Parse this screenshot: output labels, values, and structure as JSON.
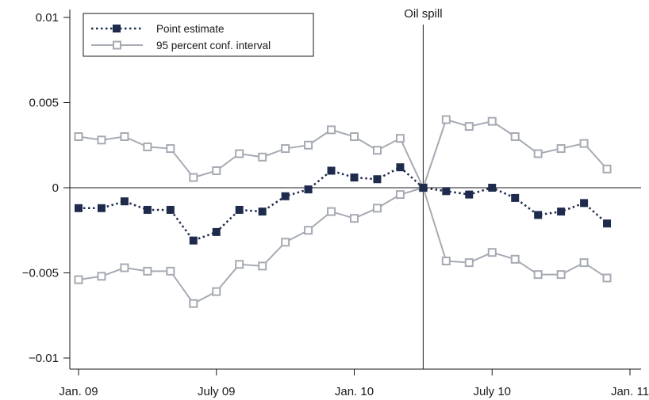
{
  "chart_data": {
    "type": "line",
    "xlim": [
      "Jan. 09",
      "Jan. 11"
    ],
    "ylim": [
      -0.01,
      0.01
    ],
    "x_ticks": [
      {
        "date": "2009-01",
        "label": "Jan. 09"
      },
      {
        "date": "2009-07",
        "label": "July 09"
      },
      {
        "date": "2010-01",
        "label": "Jan. 10"
      },
      {
        "date": "2010-07",
        "label": "July 10"
      },
      {
        "date": "2011-01",
        "label": "Jan. 11"
      }
    ],
    "y_ticks": [
      {
        "value": 0.01,
        "label": "0.01"
      },
      {
        "value": 0.005,
        "label": "0.005"
      },
      {
        "value": 0,
        "label": "0"
      },
      {
        "value": -0.005,
        "label": "−0.005"
      },
      {
        "value": -0.01,
        "label": "−0.01"
      }
    ],
    "x": [
      "2009-01",
      "2009-02",
      "2009-03",
      "2009-04",
      "2009-05",
      "2009-06",
      "2009-07",
      "2009-08",
      "2009-09",
      "2009-10",
      "2009-11",
      "2009-12",
      "2010-01",
      "2010-02",
      "2010-03",
      "2010-04",
      "2010-05",
      "2010-06",
      "2010-07",
      "2010-08",
      "2010-09",
      "2010-10",
      "2010-11",
      "2010-12"
    ],
    "series": [
      {
        "name": "Point estimate",
        "color": "#1f2b4d",
        "style": "dotted",
        "marker": "filled-square",
        "values": [
          -0.0012,
          -0.0012,
          -0.0008,
          -0.0013,
          -0.0013,
          -0.0031,
          -0.0026,
          -0.0013,
          -0.0014,
          -0.0005,
          -0.0001,
          0.001,
          0.0006,
          0.0005,
          0.0012,
          0.0,
          -0.0002,
          -0.0004,
          0.0,
          -0.0006,
          -0.0016,
          -0.0014,
          -0.0009,
          -0.0021
        ]
      },
      {
        "name": "95 percent conf. interval",
        "color": "#a6aab3",
        "style": "solid",
        "marker": "hollow-square",
        "values": [
          0.003,
          0.0028,
          0.003,
          0.0024,
          0.0023,
          0.0006,
          0.001,
          0.002,
          0.0018,
          0.0023,
          0.0025,
          0.0034,
          0.003,
          0.0022,
          0.0029,
          0.0,
          0.004,
          0.0036,
          0.0039,
          0.003,
          0.002,
          0.0023,
          0.0026,
          0.0011
        ]
      },
      {
        "color": "#a6aab3",
        "style": "solid",
        "marker": "hollow-square",
        "values": [
          -0.0054,
          -0.0052,
          -0.0047,
          -0.0049,
          -0.0049,
          -0.0068,
          -0.0061,
          -0.0045,
          -0.0046,
          -0.0032,
          -0.0025,
          -0.0014,
          -0.0018,
          -0.0012,
          -0.0004,
          0.0,
          -0.0043,
          -0.0044,
          -0.0038,
          -0.0042,
          -0.0051,
          -0.0051,
          -0.0044,
          -0.0053
        ]
      }
    ],
    "vline": {
      "date": "2010-04",
      "label": "Oil spill"
    },
    "hline": {
      "value": 0
    },
    "legend": {
      "placement": "top-left"
    },
    "grid": false
  }
}
